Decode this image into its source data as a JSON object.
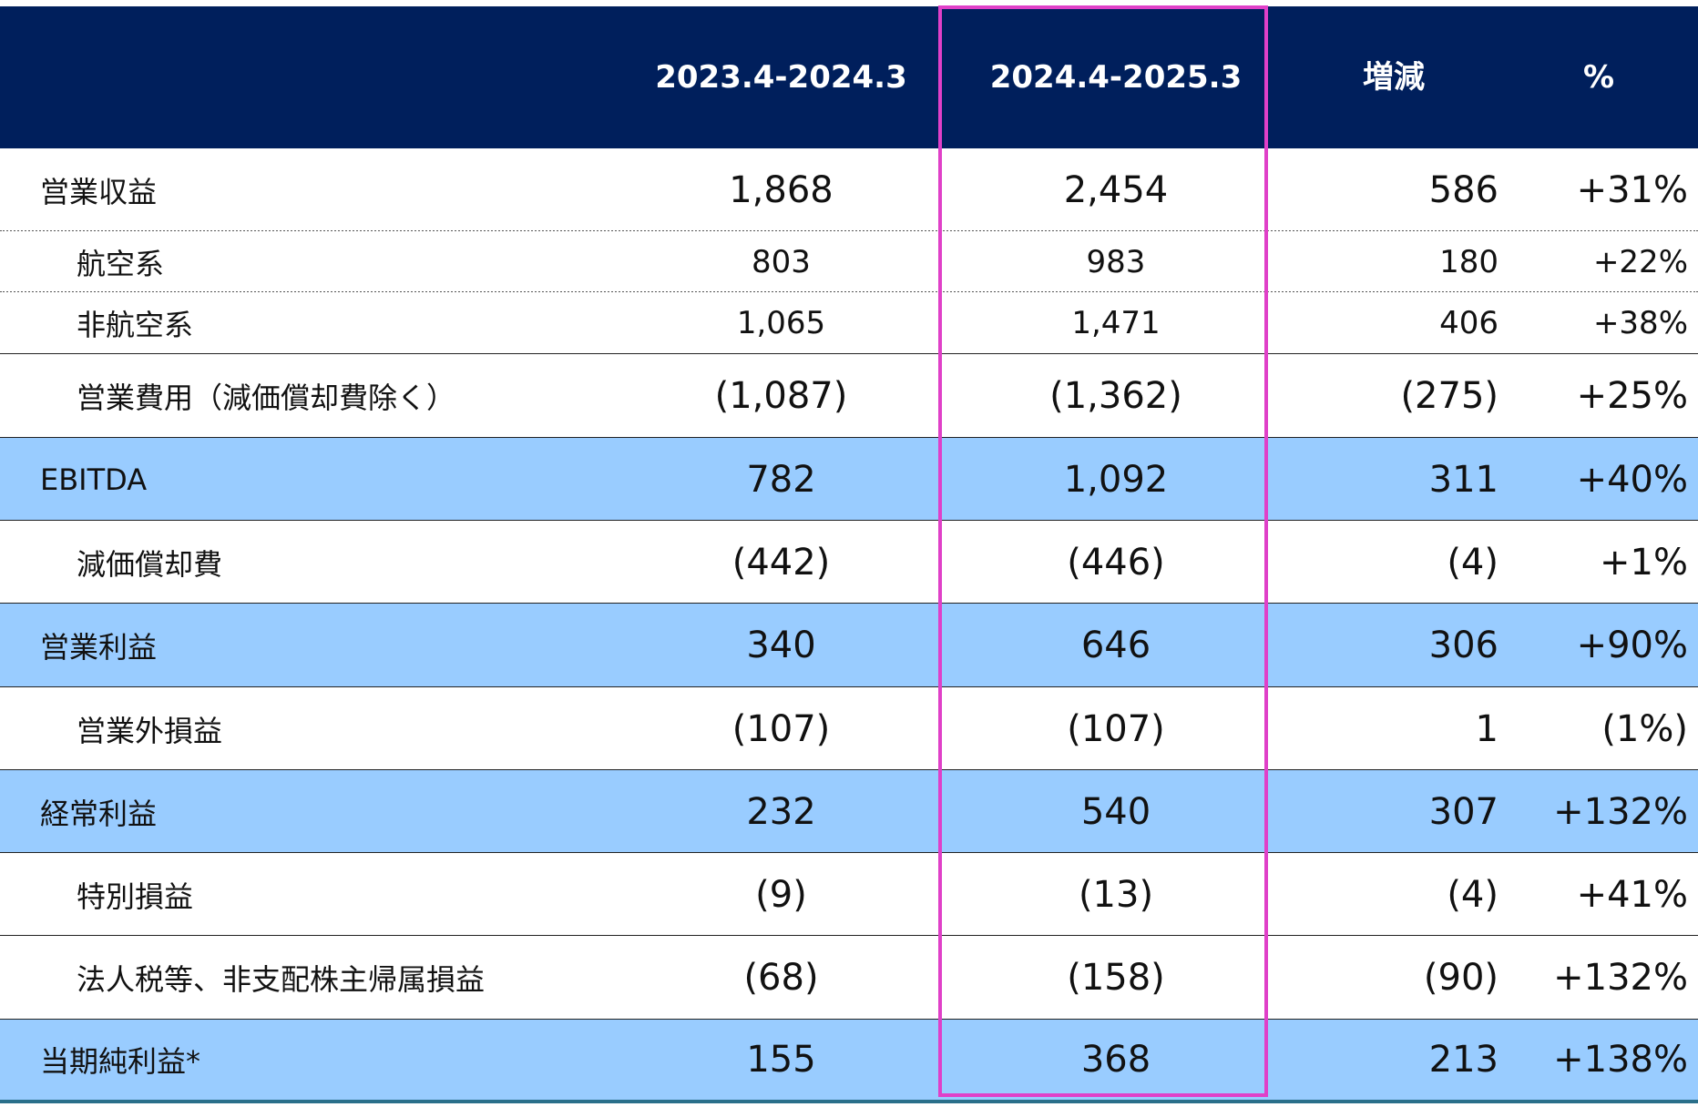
{
  "table": {
    "headers": [
      "",
      "2023.4-2024.3",
      "2024.4-2025.3",
      "増減",
      "%"
    ],
    "rows": [
      {
        "label": "営業収益",
        "indent": false,
        "highlight": false,
        "v1": "1,868",
        "v2": "2,454",
        "diff": "586",
        "pct": "+31%"
      },
      {
        "label": "航空系",
        "indent": true,
        "highlight": false,
        "v1": "803",
        "v2": "983",
        "diff": "180",
        "pct": "+22%"
      },
      {
        "label": "非航空系",
        "indent": true,
        "highlight": false,
        "v1": "1,065",
        "v2": "1,471",
        "diff": "406",
        "pct": "+38%"
      },
      {
        "label": "営業費用（減価償却費除く）",
        "indent": true,
        "highlight": false,
        "v1": "(1,087)",
        "v2": "(1,362)",
        "diff": "(275)",
        "pct": "+25%"
      },
      {
        "label": "EBITDA",
        "indent": false,
        "highlight": true,
        "v1": "782",
        "v2": "1,092",
        "diff": "311",
        "pct": "+40%"
      },
      {
        "label": "減価償却費",
        "indent": true,
        "highlight": false,
        "v1": "(442)",
        "v2": "(446)",
        "diff": "(4)",
        "pct": "+1%"
      },
      {
        "label": "営業利益",
        "indent": false,
        "highlight": true,
        "v1": "340",
        "v2": "646",
        "diff": "306",
        "pct": "+90%"
      },
      {
        "label": "営業外損益",
        "indent": true,
        "highlight": false,
        "v1": "(107)",
        "v2": "(107)",
        "diff": "1",
        "pct": "(1%)"
      },
      {
        "label": "経常利益",
        "indent": false,
        "highlight": true,
        "v1": "232",
        "v2": "540",
        "diff": "307",
        "pct": "+132%"
      },
      {
        "label": "特別損益",
        "indent": true,
        "highlight": false,
        "v1": "(9)",
        "v2": "(13)",
        "diff": "(4)",
        "pct": "+41%"
      },
      {
        "label": "法人税等、非支配株主帰属損益",
        "indent": true,
        "highlight": false,
        "v1": "(68)",
        "v2": "(158)",
        "diff": "(90)",
        "pct": "+132%"
      },
      {
        "label": "当期純利益*",
        "indent": false,
        "highlight": true,
        "v1": "155",
        "v2": "368",
        "diff": "213",
        "pct": "+138%"
      }
    ]
  },
  "colors": {
    "header_bg": "#001f5c",
    "highlight_row_bg": "#99ccff",
    "selection_border": "#e040c8",
    "bottom_rule": "#2a6f8a"
  }
}
